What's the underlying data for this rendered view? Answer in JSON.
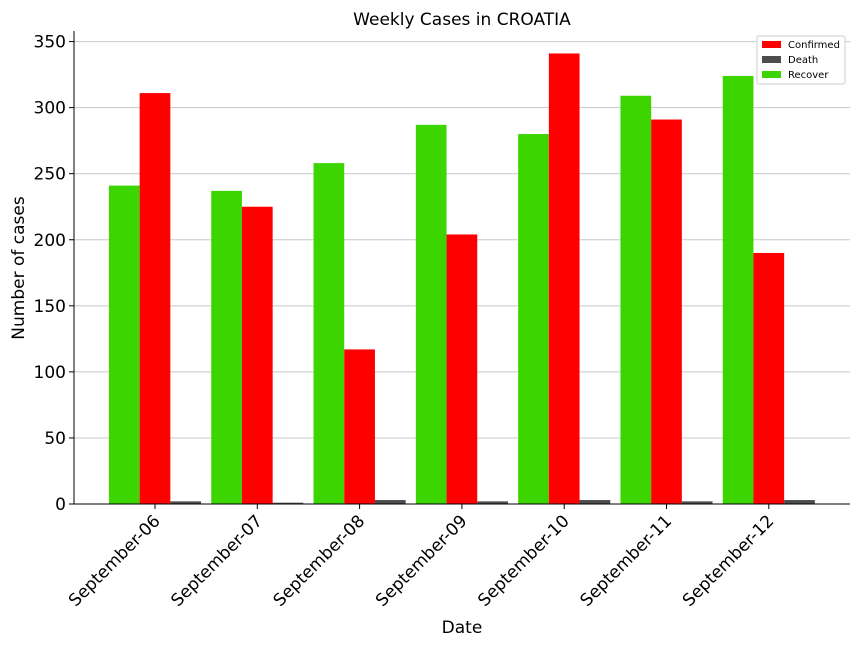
{
  "chart_data": {
    "type": "bar",
    "title": "Weekly Cases in CROATIA",
    "xlabel": "Date",
    "ylabel": "Number of cases",
    "categories": [
      "September-06",
      "September-07",
      "September-08",
      "September-09",
      "September-10",
      "September-11",
      "September-12"
    ],
    "series": [
      {
        "name": "Recover",
        "color": "#3cd500",
        "values": [
          241,
          237,
          258,
          287,
          280,
          309,
          324
        ]
      },
      {
        "name": "Confirmed",
        "color": "#ff0000",
        "values": [
          311,
          225,
          117,
          204,
          341,
          291,
          190
        ]
      },
      {
        "name": "Death",
        "color": "#4d4d4d",
        "values": [
          2,
          1,
          3,
          2,
          3,
          2,
          3
        ]
      }
    ],
    "legend_order": [
      "Confirmed",
      "Death",
      "Recover"
    ],
    "ylim": [
      0,
      358
    ],
    "yticks": [
      0,
      50,
      100,
      150,
      200,
      250,
      300,
      350
    ],
    "grid": "horizontal",
    "legend_position": "top-right"
  }
}
